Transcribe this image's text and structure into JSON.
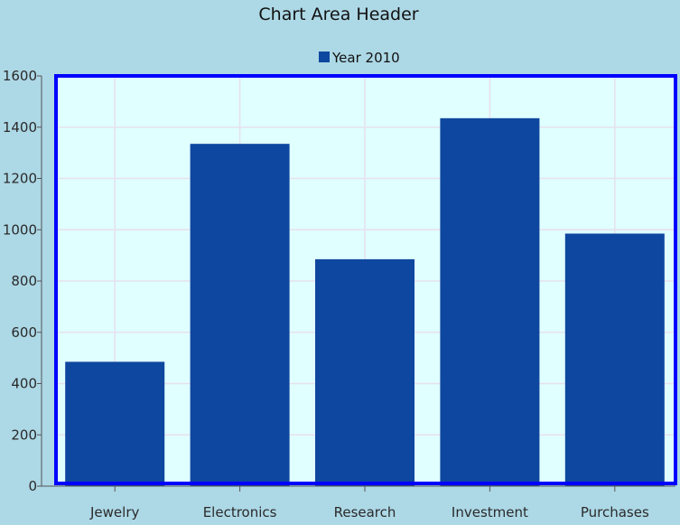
{
  "chart_data": {
    "type": "bar",
    "title": "Chart Area Header",
    "categories": [
      "Jewelry",
      "Electronics",
      "Research",
      "Investment",
      "Purchases"
    ],
    "series": [
      {
        "name": "Year 2010",
        "values": [
          485,
          1335,
          885,
          1435,
          985
        ]
      }
    ],
    "ylim": [
      0,
      1600
    ],
    "yticks": [
      0,
      200,
      400,
      600,
      800,
      1000,
      1200,
      1400,
      1600
    ],
    "ytick_labels": [
      "0",
      "200",
      "400",
      "600",
      "800",
      "1000",
      "1200",
      "1400",
      "1600"
    ],
    "grid": true,
    "legend_position": "top-center"
  },
  "colors": {
    "background": "#add8e6",
    "plot_background": "#e0ffff",
    "plot_border": "#0000ff",
    "bar": "#0e479f",
    "gridline": "#e6e0ee",
    "axis": "#555555"
  }
}
